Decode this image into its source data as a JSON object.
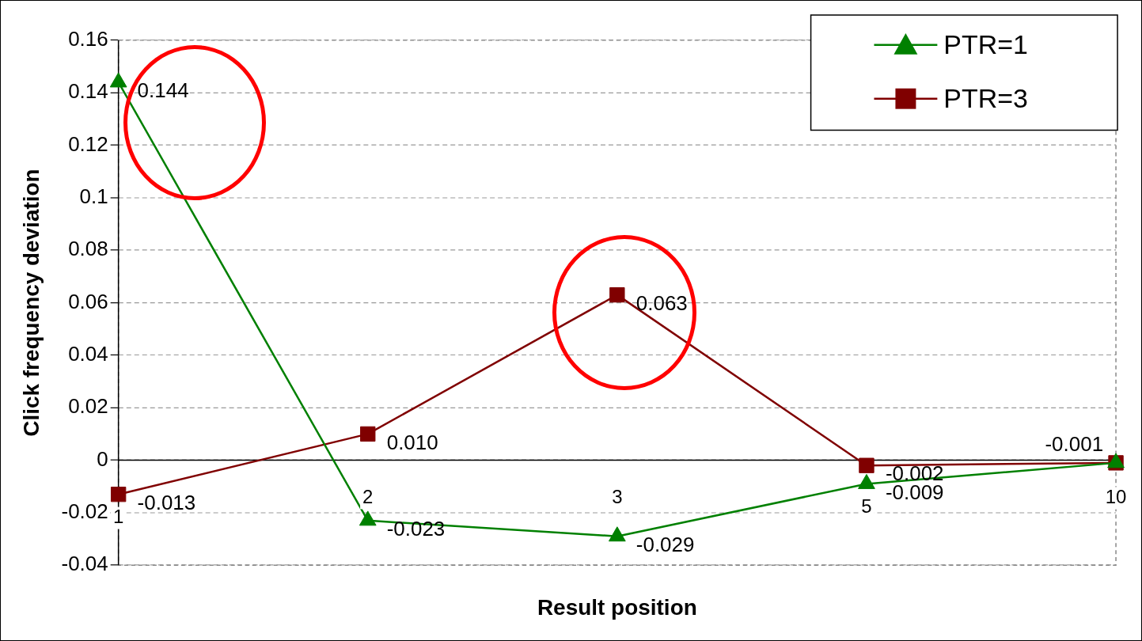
{
  "chart_data": {
    "type": "line",
    "xlabel": "Result position",
    "ylabel": "Click frequency deviation",
    "categories": [
      "1",
      "2",
      "3",
      "5",
      "10"
    ],
    "series": [
      {
        "name": "PTR=1",
        "color": "#008000",
        "marker": "triangle",
        "values": [
          0.144,
          -0.023,
          -0.029,
          -0.009,
          -0.001
        ],
        "value_labels": [
          "0.144",
          "-0.023",
          "-0.029",
          "-0.009",
          null
        ]
      },
      {
        "name": "PTR=3",
        "color": "#800000",
        "marker": "square",
        "values": [
          -0.013,
          0.01,
          0.063,
          -0.002,
          -0.001
        ],
        "value_labels": [
          "-0.013",
          "0.010",
          "0.063",
          "-0.002",
          "-0.001"
        ]
      }
    ],
    "ylim": [
      -0.04,
      0.16
    ],
    "yticks": [
      -0.04,
      -0.02,
      0,
      0.02,
      0.04,
      0.06,
      0.08,
      0.1,
      0.12,
      0.14,
      0.16
    ],
    "grid": "y",
    "legend": "top right",
    "line_style": "solid"
  }
}
